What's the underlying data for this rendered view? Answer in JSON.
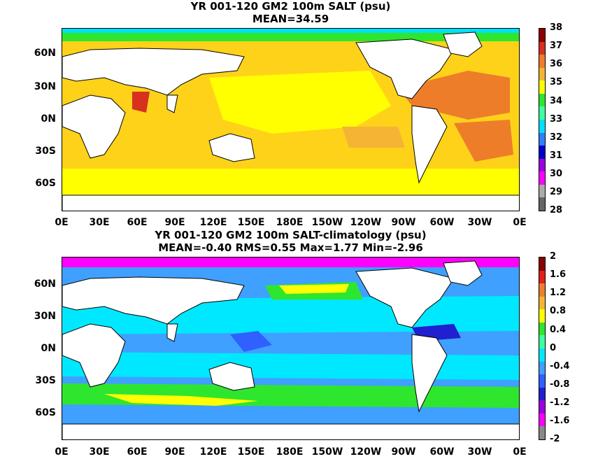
{
  "panels": [
    {
      "title_line1": "YR 001-120 GM2 100m SALT (psu)",
      "title_line2": "MEAN=34.59",
      "lat_labels": [
        "60N",
        "30N",
        "0N",
        "30S",
        "60S"
      ],
      "lon_labels": [
        "0E",
        "30E",
        "60E",
        "90E",
        "120E",
        "150E",
        "180E",
        "150W",
        "120W",
        "90W",
        "60W",
        "30W",
        "0E"
      ],
      "colorbar_ticks": [
        "38",
        "37",
        "36",
        "35",
        "34",
        "33",
        "32",
        "31",
        "30",
        "29",
        "28"
      ],
      "colorbar_colors": [
        "#8b0000",
        "#d7301f",
        "#ee7d2a",
        "#f5b433",
        "#ffff00",
        "#2ee62e",
        "#40ffa0",
        "#00e0ff",
        "#2e7fff",
        "#0000c8",
        "#9b00e0",
        "#ff00ff",
        "#aaaaaa",
        "#666666"
      ],
      "ocean_color": "#f5c02a"
    },
    {
      "title_line1": "YR 001-120 GM2 100m SALT-climatology (psu)",
      "title_line2": "MEAN=-0.40   RMS=0.55   Max=1.77   Min=-2.96",
      "lat_labels": [
        "60N",
        "30N",
        "0N",
        "30S",
        "60S"
      ],
      "lon_labels": [
        "0E",
        "30E",
        "60E",
        "90E",
        "120E",
        "150E",
        "180E",
        "150W",
        "120W",
        "90W",
        "60W",
        "30W",
        "0E"
      ],
      "colorbar_ticks": [
        "2",
        "1.6",
        "1.2",
        "0.8",
        "0.4",
        "0",
        "-0.4",
        "-0.8",
        "-1.2",
        "-1.6",
        "-2"
      ],
      "colorbar_colors": [
        "#8b0000",
        "#e0201a",
        "#ee7d2a",
        "#f5b433",
        "#ffff00",
        "#2ee62e",
        "#40ffa0",
        "#00e8ff",
        "#3fa0ff",
        "#3060ff",
        "#2020d0",
        "#9b00e0",
        "#ff00ff",
        "#888888"
      ],
      "ocean_color": "#3fb0ff"
    }
  ]
}
